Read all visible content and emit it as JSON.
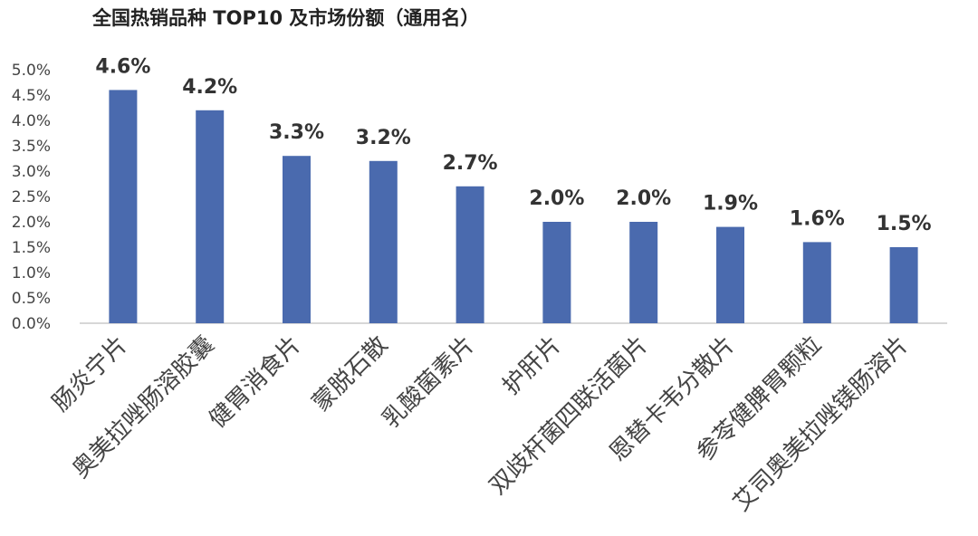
{
  "chart_data": {
    "type": "bar",
    "title": "全国热销品种 TOP10 及市场份额（通用名）",
    "categories": [
      "肠炎宁片",
      "奥美拉唑肠溶胶囊",
      "健胃消食片",
      "蒙脱石散",
      "乳酸菌素片",
      "护肝片",
      "双歧杆菌四联活菌片",
      "恩替卡韦分散片",
      "参苓健脾胃颗粒",
      "艾司奥美拉唑镁肠溶片"
    ],
    "values": [
      4.6,
      4.2,
      3.3,
      3.2,
      2.7,
      2.0,
      2.0,
      1.9,
      1.6,
      1.5
    ],
    "data_labels": [
      "4.6%",
      "4.2%",
      "3.3%",
      "3.2%",
      "2.7%",
      "2.0%",
      "2.0%",
      "1.9%",
      "1.6%",
      "1.5%"
    ],
    "y_ticks": [
      "0.0%",
      "0.5%",
      "1.0%",
      "1.5%",
      "2.0%",
      "2.5%",
      "3.0%",
      "3.5%",
      "4.0%",
      "4.5%",
      "5.0%"
    ],
    "ylim": [
      0,
      5.0
    ],
    "unit": "%",
    "bar_color": "#4a6aae",
    "grid": false,
    "legend": "none"
  }
}
